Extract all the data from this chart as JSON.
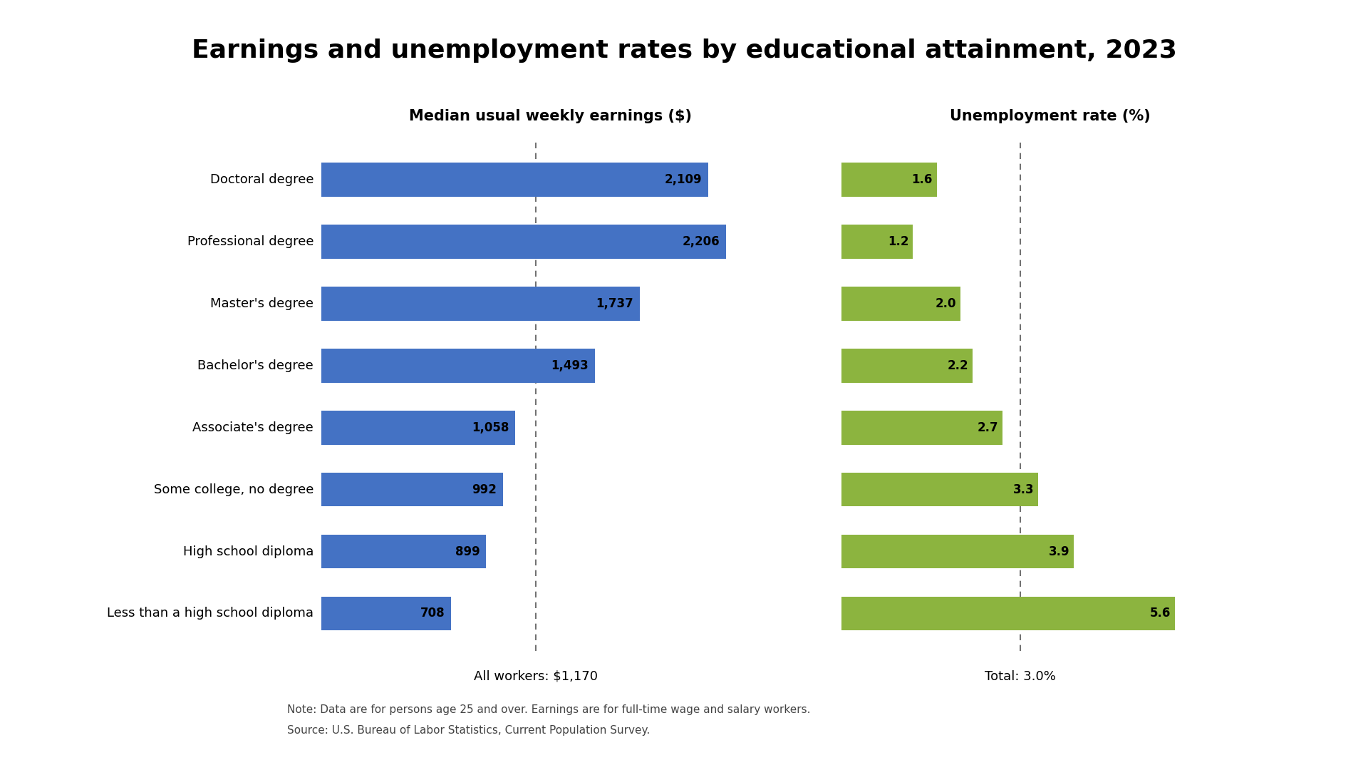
{
  "title": "Earnings and unemployment rates by educational attainment, 2023",
  "categories": [
    "Doctoral degree",
    "Professional degree",
    "Master's degree",
    "Bachelor's degree",
    "Associate's degree",
    "Some college, no degree",
    "High school diploma",
    "Less than a high school diploma"
  ],
  "earnings": [
    2109,
    2206,
    1737,
    1493,
    1058,
    992,
    899,
    708
  ],
  "unemployment": [
    1.6,
    1.2,
    2.0,
    2.2,
    2.7,
    3.3,
    3.9,
    5.6
  ],
  "earnings_label": "Median usual weekly earnings ($)",
  "unemployment_label": "Unemployment rate (%)",
  "all_workers_label": "All workers: $1,170",
  "all_workers_value": 1170,
  "total_unemp_label": "Total: 3.0%",
  "total_unemp_value": 3.0,
  "bar_color_earnings": "#4472C4",
  "bar_color_unemployment": "#8CB43F",
  "note_line1": "Note: Data are for persons age 25 and over. Earnings are for full-time wage and salary workers.",
  "note_line2": "Source: U.S. Bureau of Labor Statistics, Current Population Survey.",
  "earnings_max": 2500,
  "unemployment_max": 7.0,
  "background_color": "#FFFFFF",
  "title_fontsize": 26,
  "header_fontsize": 15,
  "label_fontsize": 13,
  "value_fontsize": 12,
  "note_fontsize": 11
}
